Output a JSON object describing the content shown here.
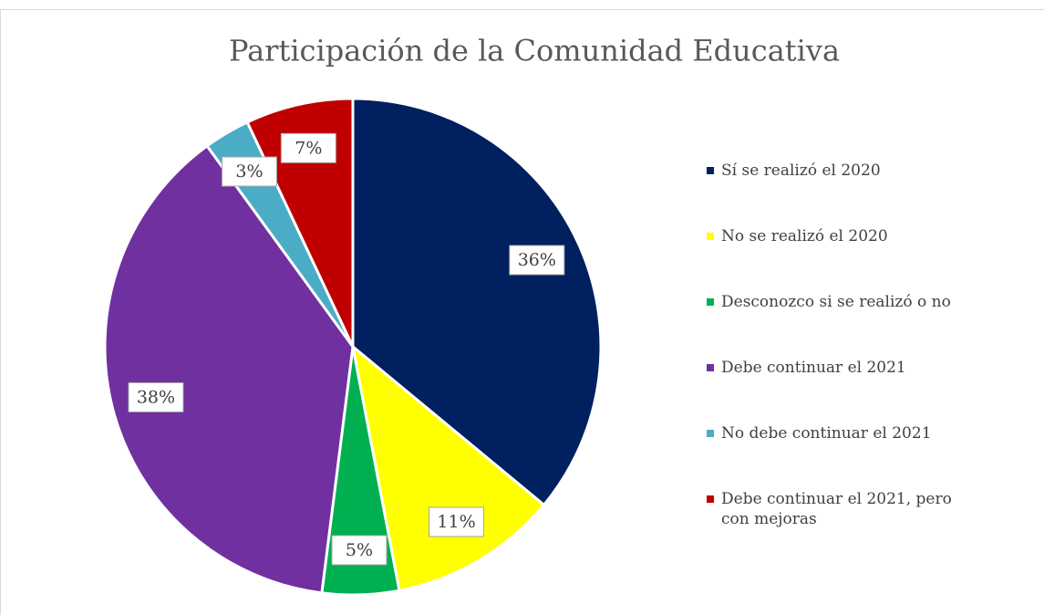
{
  "chart_data": {
    "type": "pie",
    "title": "Participación de la Comunidad Educativa",
    "categories": [
      "Sí se realizó el 2020",
      "No se realizó el 2020",
      "Desconozco si se realizó o no",
      "Debe continuar el 2021",
      "No debe continuar el 2021",
      "Debe continuar el 2021, pero con mejoras"
    ],
    "values": [
      36,
      11,
      5,
      38,
      3,
      7
    ],
    "value_labels": [
      "36%",
      "11%",
      "5%",
      "38%",
      "3%",
      "7%"
    ],
    "colors": [
      "#002060",
      "#ffff00",
      "#00b050",
      "#7030a0",
      "#4bacc6",
      "#c00000"
    ],
    "legend": "right"
  }
}
